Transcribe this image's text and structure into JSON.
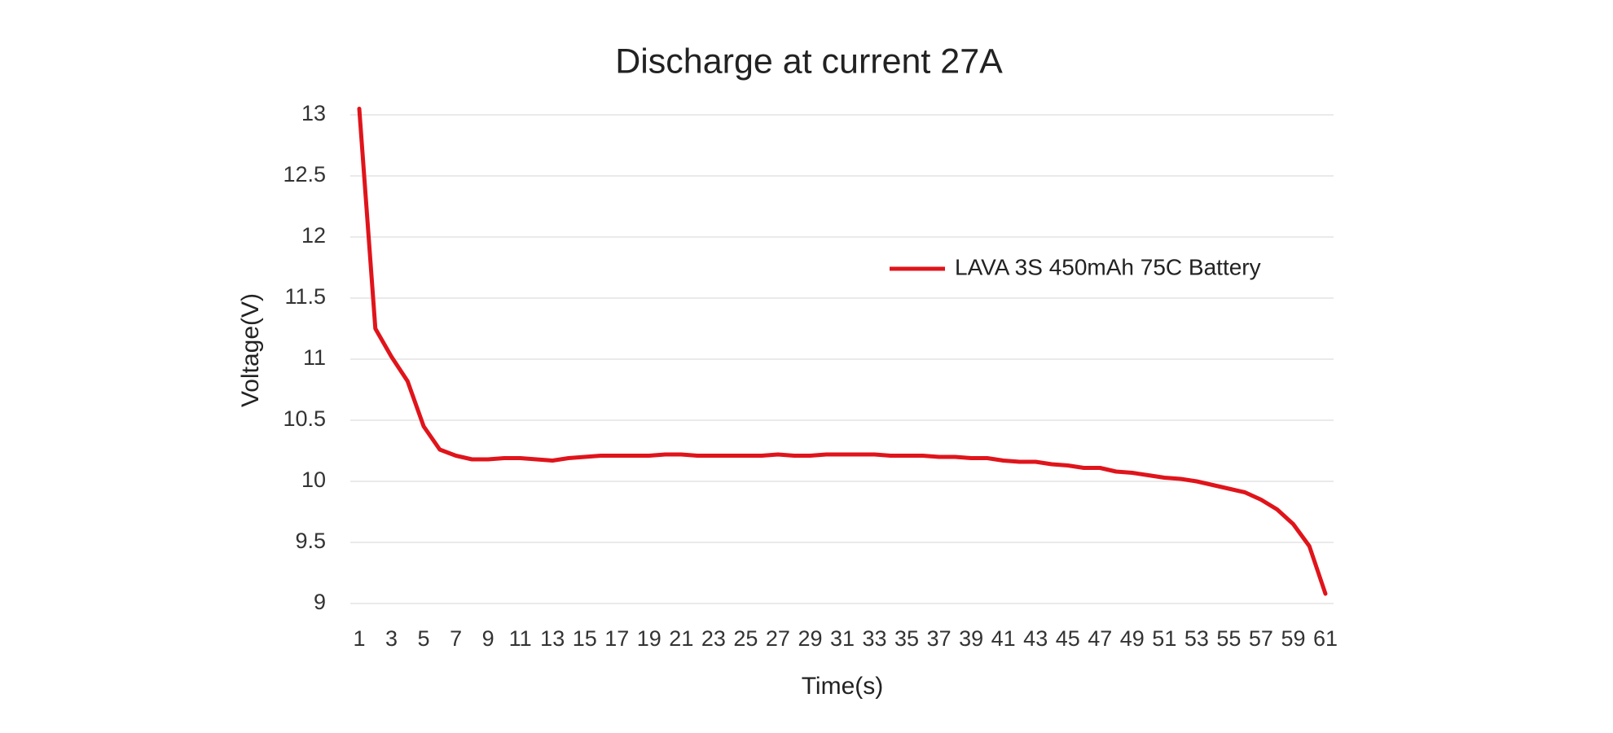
{
  "chart_data": {
    "type": "line",
    "title": "Discharge at current 27A",
    "x_label": "Time(s)",
    "y_label": "Voltage(V)",
    "x": [
      1,
      2,
      3,
      4,
      5,
      6,
      7,
      8,
      9,
      10,
      11,
      12,
      13,
      14,
      15,
      16,
      17,
      18,
      19,
      20,
      21,
      22,
      23,
      24,
      25,
      26,
      27,
      28,
      29,
      30,
      31,
      32,
      33,
      34,
      35,
      36,
      37,
      38,
      39,
      40,
      41,
      42,
      43,
      44,
      45,
      46,
      47,
      48,
      49,
      50,
      51,
      52,
      53,
      54,
      55,
      56,
      57,
      58,
      59,
      60,
      61
    ],
    "series": [
      {
        "name": "LAVA 3S 450mAh 75C Battery",
        "color": "#e0141b",
        "values": [
          13.05,
          11.25,
          11.02,
          10.82,
          10.45,
          10.26,
          10.21,
          10.18,
          10.18,
          10.19,
          10.19,
          10.18,
          10.17,
          10.19,
          10.2,
          10.21,
          10.21,
          10.21,
          10.21,
          10.22,
          10.22,
          10.21,
          10.21,
          10.21,
          10.21,
          10.21,
          10.22,
          10.21,
          10.21,
          10.22,
          10.22,
          10.22,
          10.22,
          10.21,
          10.21,
          10.21,
          10.2,
          10.2,
          10.19,
          10.19,
          10.17,
          10.16,
          10.16,
          10.14,
          10.13,
          10.11,
          10.11,
          10.08,
          10.07,
          10.05,
          10.03,
          10.02,
          10.0,
          9.97,
          9.94,
          9.91,
          9.85,
          9.77,
          9.65,
          9.47,
          9.08
        ]
      }
    ],
    "xlim": [
      1,
      61
    ],
    "xticks": [
      1,
      3,
      5,
      7,
      9,
      11,
      13,
      15,
      17,
      19,
      21,
      23,
      25,
      27,
      29,
      31,
      33,
      35,
      37,
      39,
      41,
      43,
      45,
      47,
      49,
      51,
      53,
      55,
      57,
      59,
      61
    ],
    "ylim": [
      9,
      13
    ],
    "yticks": [
      9,
      9.5,
      10,
      10.5,
      11,
      11.5,
      12,
      12.5,
      13
    ],
    "grid": true
  }
}
